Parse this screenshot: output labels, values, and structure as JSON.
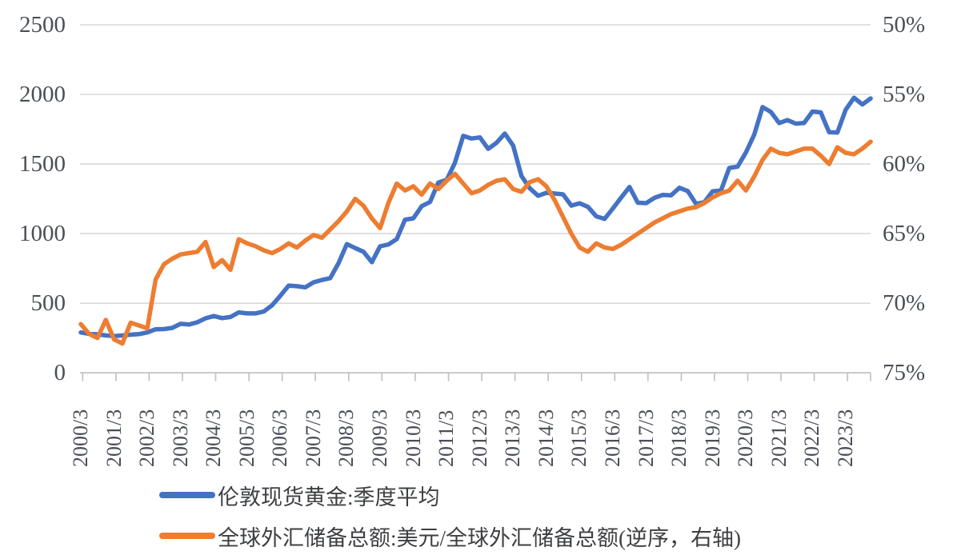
{
  "chart_data": {
    "type": "line",
    "title": "",
    "grid": "horizontal",
    "legend_position": "bottom-left",
    "categories": [
      "2000/3",
      "2000/6",
      "2000/9",
      "2000/12",
      "2001/3",
      "2001/6",
      "2001/9",
      "2001/12",
      "2002/3",
      "2002/6",
      "2002/9",
      "2002/12",
      "2003/3",
      "2003/6",
      "2003/9",
      "2003/12",
      "2004/3",
      "2004/6",
      "2004/9",
      "2004/12",
      "2005/3",
      "2005/6",
      "2005/9",
      "2005/12",
      "2006/3",
      "2006/6",
      "2006/9",
      "2006/12",
      "2007/3",
      "2007/6",
      "2007/9",
      "2007/12",
      "2008/3",
      "2008/6",
      "2008/9",
      "2008/12",
      "2009/3",
      "2009/6",
      "2009/9",
      "2009/12",
      "2010/3",
      "2010/6",
      "2010/9",
      "2010/12",
      "2011/3",
      "2011/6",
      "2011/9",
      "2011/12",
      "2012/3",
      "2012/6",
      "2012/9",
      "2012/12",
      "2013/3",
      "2013/6",
      "2013/9",
      "2013/12",
      "2014/3",
      "2014/6",
      "2014/9",
      "2014/12",
      "2015/3",
      "2015/6",
      "2015/9",
      "2015/12",
      "2016/3",
      "2016/6",
      "2016/9",
      "2016/12",
      "2017/3",
      "2017/6",
      "2017/9",
      "2017/12",
      "2018/3",
      "2018/6",
      "2018/9",
      "2018/12",
      "2019/3",
      "2019/6",
      "2019/9",
      "2019/12",
      "2020/3",
      "2020/6",
      "2020/9",
      "2020/12",
      "2021/3",
      "2021/6",
      "2021/9",
      "2021/12",
      "2022/3",
      "2022/6",
      "2022/9",
      "2022/12",
      "2023/3",
      "2023/6",
      "2023/9",
      "2023/12"
    ],
    "x_tick_labels": [
      "2000/3",
      "2001/3",
      "2002/3",
      "2003/3",
      "2004/3",
      "2005/3",
      "2006/3",
      "2007/3",
      "2008/3",
      "2009/3",
      "2010/3",
      "2011/3",
      "2012/3",
      "2013/3",
      "2014/3",
      "2015/3",
      "2016/3",
      "2017/3",
      "2018/3",
      "2019/3",
      "2020/3",
      "2021/3",
      "2022/3",
      "2023/3"
    ],
    "left_axis": {
      "min": 0,
      "max": 2500,
      "tick_labels": [
        "2500",
        "2000",
        "1500",
        "1000",
        "500",
        "0"
      ],
      "tick_values": [
        2500,
        2000,
        1500,
        1000,
        500,
        0
      ]
    },
    "right_axis": {
      "min": 50,
      "max": 75,
      "inverted": true,
      "tick_labels": [
        "50%",
        "55%",
        "60%",
        "65%",
        "70%",
        "75%"
      ],
      "tick_values": [
        50,
        55,
        60,
        65,
        70,
        75
      ]
    },
    "series": [
      {
        "name": "伦敦现货黄金:季度平均",
        "yaxis": "left",
        "color": "#4472C4",
        "values": [
          290,
          279,
          277,
          269,
          264,
          268,
          274,
          278,
          290,
          313,
          314,
          323,
          352,
          347,
          363,
          392,
          408,
          393,
          401,
          434,
          427,
          427,
          440,
          485,
          554,
          627,
          622,
          614,
          650,
          667,
          680,
          788,
          925,
          896,
          870,
          795,
          909,
          922,
          960,
          1100,
          1110,
          1197,
          1227,
          1367,
          1386,
          1508,
          1702,
          1683,
          1691,
          1609,
          1652,
          1719,
          1632,
          1414,
          1326,
          1272,
          1293,
          1288,
          1282,
          1201,
          1218,
          1192,
          1124,
          1106,
          1181,
          1260,
          1335,
          1222,
          1219,
          1257,
          1278,
          1275,
          1329,
          1306,
          1213,
          1226,
          1304,
          1309,
          1472,
          1481,
          1583,
          1711,
          1909,
          1874,
          1794,
          1816,
          1790,
          1795,
          1877,
          1871,
          1729,
          1726,
          1890,
          1976,
          1928,
          1971
        ]
      },
      {
        "name": "全球外汇储备总额:美元/全球外汇储备总额(逆序，右轴)",
        "yaxis": "right",
        "color": "#ED7D31",
        "values": [
          71.5,
          72.2,
          72.5,
          71.2,
          72.6,
          72.9,
          71.4,
          71.6,
          71.8,
          68.3,
          67.2,
          66.8,
          66.5,
          66.4,
          66.3,
          65.6,
          67.4,
          66.9,
          67.6,
          65.4,
          65.7,
          65.9,
          66.2,
          66.4,
          66.1,
          65.7,
          66.0,
          65.5,
          65.1,
          65.3,
          64.7,
          64.1,
          63.4,
          62.5,
          63.0,
          63.9,
          64.6,
          62.8,
          61.4,
          61.9,
          61.6,
          62.2,
          61.4,
          61.8,
          61.2,
          60.7,
          61.4,
          62.1,
          61.9,
          61.5,
          61.2,
          61.1,
          61.8,
          62.0,
          61.3,
          61.1,
          61.6,
          62.6,
          63.8,
          65.0,
          66.0,
          66.3,
          65.7,
          66.0,
          66.1,
          65.8,
          65.4,
          65.0,
          64.6,
          64.2,
          63.9,
          63.6,
          63.4,
          63.2,
          63.1,
          62.8,
          62.4,
          62.1,
          61.9,
          61.2,
          61.9,
          60.9,
          59.7,
          58.9,
          59.2,
          59.3,
          59.1,
          58.9,
          58.9,
          59.4,
          60.0,
          58.8,
          59.2,
          59.3,
          58.9,
          58.4
        ]
      }
    ],
    "grid_color": "#D9D9D9",
    "axis_line_color": "#BFBFBF"
  },
  "legend": {
    "items": [
      {
        "label": "伦敦现货黄金:季度平均"
      },
      {
        "label": "全球外汇储备总额:美元/全球外汇储备总额(逆序，右轴)"
      }
    ]
  }
}
